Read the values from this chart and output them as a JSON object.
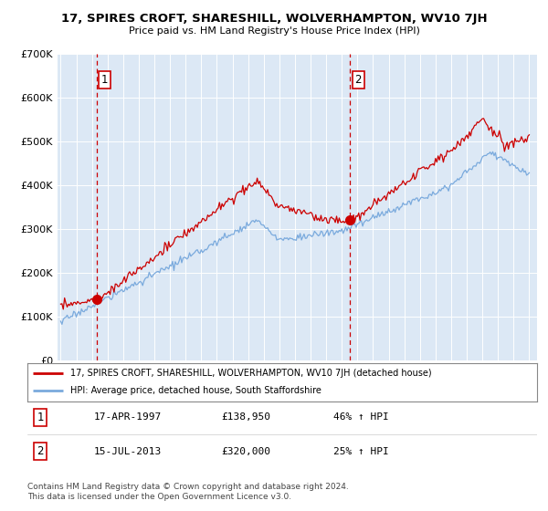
{
  "title": "17, SPIRES CROFT, SHARESHILL, WOLVERHAMPTON, WV10 7JH",
  "subtitle": "Price paid vs. HM Land Registry's House Price Index (HPI)",
  "legend_line1": "17, SPIRES CROFT, SHARESHILL, WOLVERHAMPTON, WV10 7JH (detached house)",
  "legend_line2": "HPI: Average price, detached house, South Staffordshire",
  "table_row1": [
    "1",
    "17-APR-1997",
    "£138,950",
    "46% ↑ HPI"
  ],
  "table_row2": [
    "2",
    "15-JUL-2013",
    "£320,000",
    "25% ↑ HPI"
  ],
  "footer": "Contains HM Land Registry data © Crown copyright and database right 2024.\nThis data is licensed under the Open Government Licence v3.0.",
  "sale1_year": 1997.29,
  "sale1_price": 138950,
  "sale2_year": 2013.54,
  "sale2_price": 320000,
  "red_color": "#cc0000",
  "blue_color": "#7aaadd",
  "bg_color": "#dce8f5",
  "plot_bg": "#ffffff",
  "ylim": [
    0,
    700000
  ],
  "xlim": [
    1994.8,
    2025.5
  ],
  "yticks": [
    0,
    100000,
    200000,
    300000,
    400000,
    500000,
    600000,
    700000
  ],
  "ytick_labels": [
    "£0",
    "£100K",
    "£200K",
    "£300K",
    "£400K",
    "£500K",
    "£600K",
    "£700K"
  ]
}
